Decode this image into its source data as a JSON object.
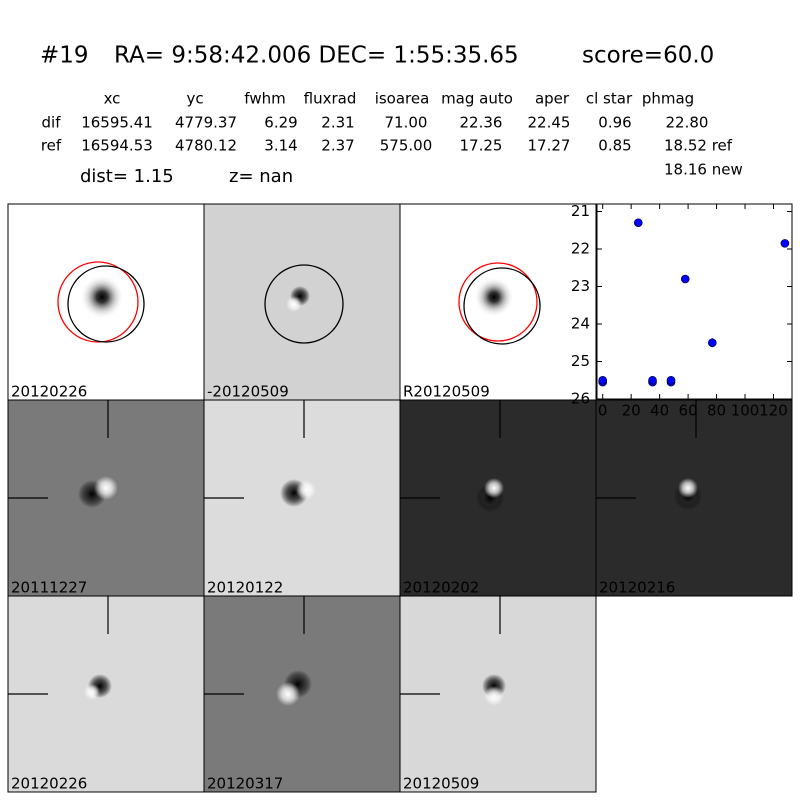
{
  "header": {
    "id": "#19",
    "coords": "RA= 9:58:42.006 DEC= 1:55:35.65",
    "score": "score=60.0"
  },
  "table": {
    "columns": [
      "xc",
      "yc",
      "fwhm",
      "fluxrad",
      "isoarea",
      "mag auto",
      "aper",
      "cl star",
      "phmag"
    ],
    "rows": [
      [
        "dif",
        "16595.41",
        "4779.37",
        "6.29",
        "2.31",
        "71.00",
        "22.36",
        "22.45",
        "0.96",
        "22.80"
      ],
      [
        "ref",
        "16594.53",
        "4780.12",
        "3.14",
        "2.37",
        "575.00",
        "17.25",
        "17.27",
        "0.85",
        "18.52 ref"
      ]
    ],
    "extra": "18.16 new"
  },
  "stats": {
    "dist": "dist=  1.15",
    "z": "z=   nan"
  },
  "panels": [
    {
      "label": "20120226"
    },
    {
      "label": "-20120509"
    },
    {
      "label": "R20120509"
    },
    {
      "label": "20111227"
    },
    {
      "label": "20120122"
    },
    {
      "label": "20120202"
    },
    {
      "label": "20120216"
    },
    {
      "label": "20120226",
      "label_color": "#ff0000"
    },
    {
      "label": "20120317"
    },
    {
      "label": "20120509"
    }
  ],
  "chart_data": {
    "type": "scatter",
    "color": "#0000ff",
    "x": [
      0,
      0,
      25,
      35,
      35,
      48,
      48,
      58,
      77,
      128
    ],
    "values": [
      25.55,
      25.5,
      21.3,
      25.55,
      25.5,
      25.55,
      25.5,
      22.8,
      24.5,
      21.85
    ],
    "errors": [
      0.05,
      0.05,
      0.03,
      0.05,
      0.05,
      0.05,
      0.05,
      0.05,
      0.12,
      0.03
    ],
    "xlim": [
      -4,
      133
    ],
    "ylim": [
      20.8,
      26
    ],
    "y_inverted": true,
    "xticks": [
      0,
      20,
      40,
      60,
      80,
      100,
      120
    ],
    "yticks": [
      21,
      22,
      23,
      24,
      25,
      26
    ]
  }
}
